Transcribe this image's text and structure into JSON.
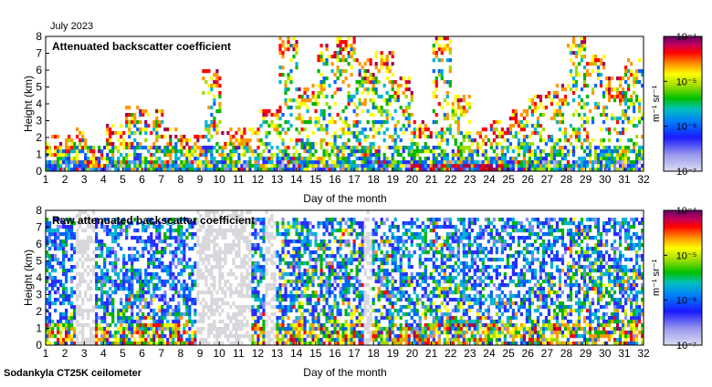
{
  "header": {
    "month": "July 2023"
  },
  "footer": {
    "instrument": "Sodankyla CT25K ceilometer"
  },
  "colorbar": {
    "unit": "m⁻¹ sr⁻¹",
    "ticks": [
      "10⁻⁴",
      "10⁻⁵",
      "10⁻⁶",
      "10⁻⁷"
    ],
    "exponents": [
      -4,
      -5,
      -6,
      -7
    ],
    "range": [
      1e-07,
      0.0001
    ],
    "scale": "log"
  },
  "chart_data": [
    {
      "type": "heatmap",
      "title": "Attenuated backscatter coefficient",
      "xlabel": "Day of the month",
      "ylabel": "Height (km)",
      "xlim": [
        1,
        32
      ],
      "ylim": [
        0,
        8
      ],
      "xticks": [
        1,
        2,
        3,
        4,
        5,
        6,
        7,
        8,
        9,
        10,
        11,
        12,
        13,
        14,
        15,
        16,
        17,
        18,
        19,
        20,
        21,
        22,
        23,
        24,
        25,
        26,
        27,
        28,
        29,
        30,
        31,
        32
      ],
      "yticks": [
        0,
        1,
        2,
        3,
        4,
        5,
        6,
        7,
        8
      ],
      "colorscale": "log",
      "crange": [
        1e-07,
        0.0001
      ]
    },
    {
      "type": "heatmap",
      "title": "Raw attenuated backscatter coefficient",
      "xlabel": "Day of the month",
      "ylabel": "Height (km)",
      "xlim": [
        1,
        32
      ],
      "ylim": [
        0,
        8
      ],
      "xticks": [
        1,
        2,
        3,
        4,
        5,
        6,
        7,
        8,
        9,
        10,
        11,
        12,
        13,
        14,
        15,
        16,
        17,
        18,
        19,
        20,
        21,
        22,
        23,
        24,
        25,
        26,
        27,
        28,
        29,
        30,
        31,
        32
      ],
      "yticks": [
        0,
        1,
        2,
        3,
        4,
        5,
        6,
        7,
        8
      ],
      "colorscale": "log",
      "crange": [
        1e-07,
        0.0001
      ]
    }
  ]
}
